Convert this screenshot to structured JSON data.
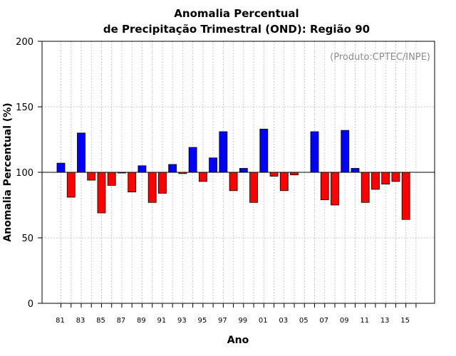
{
  "chart_data": {
    "type": "bar",
    "title": [
      "Anomalia Percentual",
      "de Precipitação Trimestral (OND): Região 90"
    ],
    "xlabel": "Ano",
    "ylabel": "Anomalia Percentual (%)",
    "annotation": "(Produto:CPTEC/INPE)",
    "ylim": [
      0,
      200
    ],
    "yticks": [
      "0",
      "50",
      "100",
      "150",
      "200"
    ],
    "baseline": 100,
    "grid": true,
    "years": [
      1981,
      1982,
      1983,
      1984,
      1985,
      1986,
      1987,
      1988,
      1989,
      1990,
      1991,
      1992,
      1993,
      1994,
      1995,
      1996,
      1997,
      1998,
      1999,
      2000,
      2001,
      2002,
      2003,
      2004,
      2005,
      2006,
      2007,
      2008,
      2009,
      2010,
      2011,
      2012,
      2013,
      2014,
      2015,
      2016
    ],
    "values": [
      107,
      81,
      130,
      94,
      69,
      90,
      100,
      85,
      105,
      77,
      84,
      106,
      99,
      119,
      93,
      111,
      131,
      86,
      103,
      77,
      133,
      97,
      86,
      98,
      null,
      131,
      79,
      75,
      132,
      103,
      77,
      87,
      91,
      93,
      64,
      null
    ],
    "xtick_labels": [
      "81",
      "83",
      "85",
      "87",
      "89",
      "91",
      "93",
      "95",
      "97",
      "99",
      "01",
      "03",
      "05",
      "07",
      "09",
      "11",
      "13",
      "15"
    ],
    "colors": {
      "above": "#0000ff",
      "below": "#ff0000",
      "outline": "#000000",
      "grid": "#c8c8c8",
      "credit": "#8c8c8c"
    }
  }
}
